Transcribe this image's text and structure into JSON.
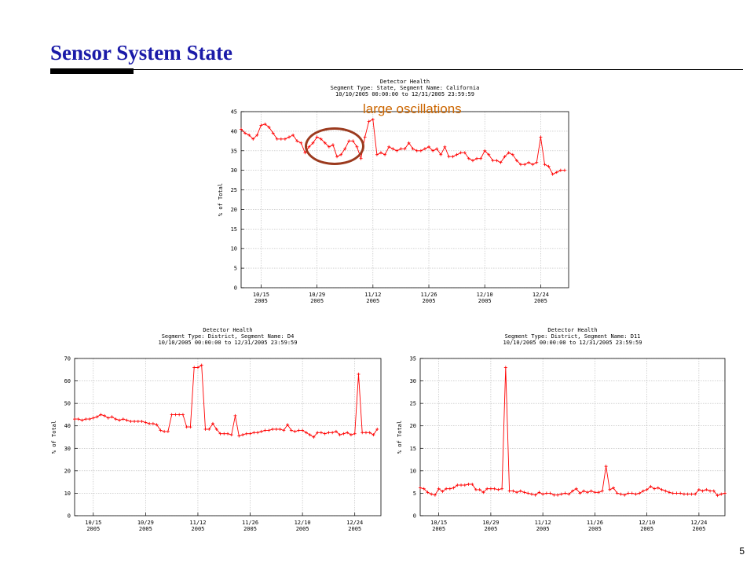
{
  "slide": {
    "title": "Sensor System State",
    "page_number": "5"
  },
  "annotation": {
    "text": "large oscillations"
  },
  "colors": {
    "title": "#1a1aa8",
    "series": "#ff0000",
    "annotation": "#cc6600",
    "oval": "#9b3a1e"
  },
  "chart_data": [
    {
      "type": "line",
      "title": "Detector Health",
      "subtitle": [
        "Segment Type: State, Segment Name: California",
        "10/10/2005 00:00:00 to 12/31/2005 23:59:59"
      ],
      "xlabel": "",
      "ylabel": "% of Total",
      "x_start": "2005-10-10",
      "x_end": "2005-12-31",
      "ylim": [
        0,
        45
      ],
      "yticks": [
        0,
        5,
        10,
        15,
        20,
        25,
        30,
        35,
        40,
        45
      ],
      "xticks": [
        {
          "date": "2005-10-15",
          "l1": "10/15",
          "l2": "2005"
        },
        {
          "date": "2005-10-29",
          "l1": "10/29",
          "l2": "2005"
        },
        {
          "date": "2005-11-12",
          "l1": "11/12",
          "l2": "2005"
        },
        {
          "date": "2005-11-26",
          "l1": "11/26",
          "l2": "2005"
        },
        {
          "date": "2005-12-10",
          "l1": "12/10",
          "l2": "2005"
        },
        {
          "date": "2005-12-24",
          "l1": "12/24",
          "l2": "2005"
        }
      ],
      "grid": true,
      "series": [
        {
          "values": [
            40.5,
            39.5,
            39,
            38,
            39,
            41.5,
            41.8,
            41,
            39.5,
            38,
            38,
            38,
            38.5,
            39,
            37.5,
            37,
            34.5,
            36,
            37,
            38.5,
            38,
            37,
            36,
            36.5,
            33.5,
            34,
            35.5,
            37.5,
            37.5,
            36,
            33,
            38.5,
            42.5,
            43,
            34,
            34.5,
            34,
            36,
            35.5,
            35,
            35.5,
            35.5,
            37,
            35.5,
            35,
            35,
            35.5,
            36,
            35,
            35.5,
            34,
            36,
            33.5,
            33.5,
            34,
            34.5,
            34.5,
            33,
            32.5,
            33,
            33,
            35,
            34,
            32.5,
            32.5,
            32,
            33.5,
            34.5,
            34,
            32.5,
            31.5,
            31.5,
            32,
            31.5,
            32,
            38.5,
            31.5,
            31,
            29,
            29.5,
            30,
            30
          ]
        }
      ]
    },
    {
      "type": "line",
      "title": "Detector Health",
      "subtitle": [
        "Segment Type: District, Segment Name: D4",
        "10/10/2005 00:00:00 to 12/31/2005 23:59:59"
      ],
      "xlabel": "",
      "ylabel": "% of Total",
      "x_start": "2005-10-10",
      "x_end": "2005-12-31",
      "ylim": [
        0,
        70
      ],
      "yticks": [
        0,
        10,
        20,
        30,
        40,
        50,
        60,
        70
      ],
      "xticks": [
        {
          "date": "2005-10-15",
          "l1": "10/15",
          "l2": "2005"
        },
        {
          "date": "2005-10-29",
          "l1": "10/29",
          "l2": "2005"
        },
        {
          "date": "2005-11-12",
          "l1": "11/12",
          "l2": "2005"
        },
        {
          "date": "2005-11-26",
          "l1": "11/26",
          "l2": "2005"
        },
        {
          "date": "2005-12-10",
          "l1": "12/10",
          "l2": "2005"
        },
        {
          "date": "2005-12-24",
          "l1": "12/24",
          "l2": "2005"
        }
      ],
      "grid": true,
      "series": [
        {
          "values": [
            43,
            43,
            42.5,
            43,
            43,
            43.5,
            44,
            45,
            44.5,
            43.5,
            44,
            43,
            42.5,
            43,
            42.5,
            42,
            42,
            42,
            42,
            41.5,
            41,
            41,
            40.5,
            38,
            37.5,
            37.5,
            45,
            45,
            45,
            45,
            39.5,
            39.5,
            66,
            66,
            67,
            38.5,
            38.5,
            41,
            38.5,
            36.5,
            36.5,
            36.5,
            36,
            44.5,
            35.5,
            36,
            36.5,
            36.5,
            37,
            37,
            37.5,
            38,
            38,
            38.5,
            38.5,
            38.5,
            38,
            40.5,
            38,
            37.5,
            38,
            38,
            37,
            36,
            35,
            37,
            37,
            36.5,
            37,
            37,
            37.5,
            36,
            36.5,
            37,
            36,
            36.5,
            63,
            37,
            37,
            37,
            36,
            38.5
          ]
        }
      ]
    },
    {
      "type": "line",
      "title": "Detector Health",
      "subtitle": [
        "Segment Type: District, Segment Name: D11",
        "10/10/2005 00:00:00 to 12/31/2005 23:59:59"
      ],
      "xlabel": "",
      "ylabel": "% of Total",
      "x_start": "2005-10-10",
      "x_end": "2005-12-31",
      "ylim": [
        0,
        35
      ],
      "yticks": [
        0,
        5,
        10,
        15,
        20,
        25,
        30,
        35
      ],
      "xticks": [
        {
          "date": "2005-10-15",
          "l1": "10/15",
          "l2": "2005"
        },
        {
          "date": "2005-10-29",
          "l1": "10/29",
          "l2": "2005"
        },
        {
          "date": "2005-11-12",
          "l1": "11/12",
          "l2": "2005"
        },
        {
          "date": "2005-11-26",
          "l1": "11/26",
          "l2": "2005"
        },
        {
          "date": "2005-12-10",
          "l1": "12/10",
          "l2": "2005"
        },
        {
          "date": "2005-12-24",
          "l1": "12/24",
          "l2": "2005"
        }
      ],
      "grid": true,
      "series": [
        {
          "values": [
            6.2,
            6,
            5.2,
            4.8,
            4.6,
            6,
            5.4,
            6,
            6,
            6.2,
            6.8,
            6.8,
            6.8,
            7,
            7,
            5.8,
            5.8,
            5.2,
            6,
            6,
            6,
            5.8,
            6,
            33,
            5.5,
            5.5,
            5.2,
            5.5,
            5.2,
            5,
            4.8,
            4.6,
            5.2,
            4.8,
            5,
            5,
            4.6,
            4.6,
            4.8,
            5,
            4.8,
            5.5,
            6,
            5,
            5.5,
            5.2,
            5.5,
            5.2,
            5.2,
            5.5,
            11,
            5.8,
            6.2,
            5,
            4.8,
            4.6,
            5,
            5,
            4.8,
            5,
            5.5,
            5.8,
            6.5,
            6,
            6.2,
            5.8,
            5.5,
            5.2,
            5,
            5,
            5,
            4.8,
            4.8,
            4.8,
            4.8,
            5.8,
            5.5,
            5.8,
            5.5,
            5.5,
            4.5,
            4.8,
            5
          ]
        }
      ]
    }
  ]
}
